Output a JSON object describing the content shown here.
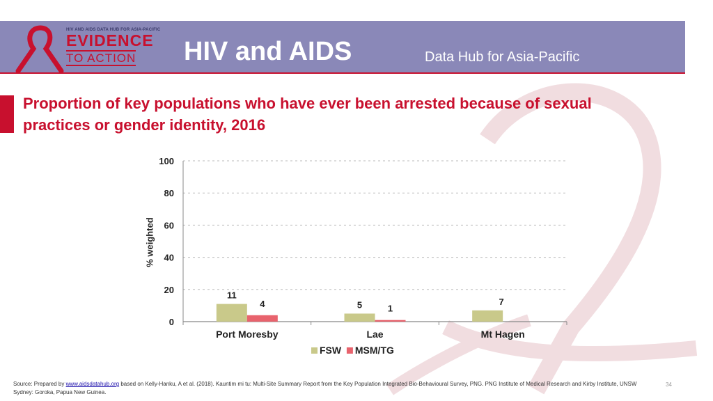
{
  "header": {
    "logo_small_text": "HIV AND AIDS DATA HUB FOR ASIA-PACIFIC",
    "logo_line1": "EVIDENCE",
    "logo_line2": "TO ACTION",
    "title": "HIV and AIDS",
    "subtitle": "Data Hub for Asia-Pacific"
  },
  "colors": {
    "banner": "#8a88b8",
    "accent_red": "#c8102e",
    "fsw": "#c9c98a",
    "msm_tg": "#e8636d"
  },
  "chart_data": {
    "type": "bar",
    "title": "Proportion of key populations who have ever been arrested because of sexual practices or gender identity, 2016",
    "xlabel": "",
    "ylabel": "% weighted",
    "ylim": [
      0,
      100
    ],
    "yticks": [
      0,
      20,
      40,
      60,
      80,
      100
    ],
    "grid": true,
    "legend_position": "bottom",
    "categories": [
      "Port Moresby",
      "Lae",
      "Mt Hagen"
    ],
    "series": [
      {
        "name": "FSW",
        "values": [
          11,
          5,
          7
        ],
        "color": "#c9c98a"
      },
      {
        "name": "MSM/TG",
        "values": [
          4,
          1,
          null
        ],
        "color": "#e8636d"
      }
    ]
  },
  "footer": {
    "source_prefix": "Source: Prepared by ",
    "source_link": "www.aidsdatahub.org",
    "source_rest": " based on Kelly-Hanku, A et al. (2018). Kauntim mi tu: Multi-Site Summary Report from the Key Population Integrated Bio-Behavioural Survey, PNG. PNG Institute of Medical Research and Kirby Institute, UNSW Sydney: Goroka, Papua New Guinea.",
    "page_number": "34"
  }
}
